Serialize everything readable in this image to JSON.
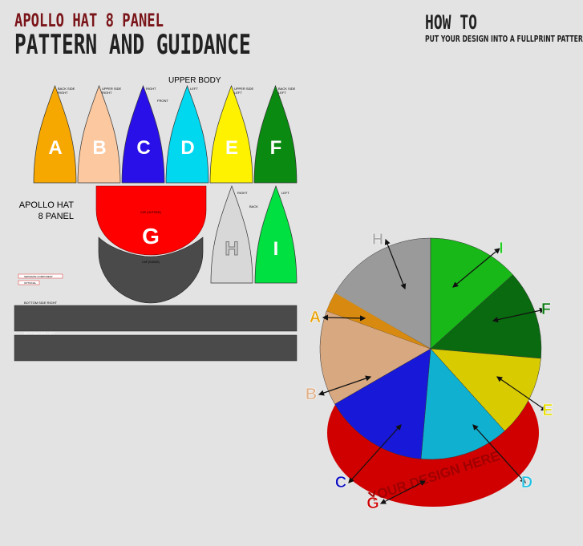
{
  "header": {
    "brand": "APOLLO HAT 8 PANEL",
    "title": "PATTERN AND GUIDANCE",
    "howto_title": "HOW TO",
    "howto_sub": "PUT YOUR DESIGN INTO A FULLPRINT PATTERN"
  },
  "pattern": {
    "upper_body_label": "UPPER BODY",
    "front_label": "FRONT",
    "side_label": "APOLLO HAT",
    "side_label2": "8 PANEL",
    "panels": [
      {
        "letter": "A",
        "color": "#f7a800",
        "note": "BACK SIDE",
        "note2": "RIGHT"
      },
      {
        "letter": "B",
        "color": "#fbc8a0",
        "note": "UPPER SIDE",
        "note2": "RIGHT"
      },
      {
        "letter": "C",
        "color": "#2a10e8",
        "note": "RIGHT",
        "note2": ""
      },
      {
        "letter": "D",
        "color": "#00d8f0",
        "note": "LEFT",
        "note2": ""
      },
      {
        "letter": "E",
        "color": "#fff200",
        "note": "UPPER SIDE",
        "note2": "LEFT"
      },
      {
        "letter": "F",
        "color": "#0a8a10",
        "note": "BACK SIDE",
        "note2": "LEFT"
      }
    ],
    "visor": {
      "letter": "G",
      "color": "#ff0000",
      "outer_label": "CAP (OUTSIDE)",
      "inner_label": "CAP (INSIDE)",
      "inner_color": "#4a4a4a"
    },
    "back": [
      {
        "letter": "H",
        "color": "#d8d8d8",
        "note": "RIGHT"
      },
      {
        "letter": "I",
        "color": "#00e040",
        "note": "LEFT"
      }
    ],
    "back_label": "BACK",
    "bands": [
      {
        "label": "BOTTOM SIDE RIGHT"
      },
      {
        "label": "BOTTOM SIDE LEFT"
      }
    ],
    "legend": [
      "SEPARATE COMPONENT",
      "OPTIONAL"
    ]
  },
  "hat": {
    "brim_text": "YOUR DESIGN HERE",
    "labels": [
      {
        "letter": "H",
        "color": "#aaaaaa"
      },
      {
        "letter": "I",
        "color": "#22cc22"
      },
      {
        "letter": "F",
        "color": "#0a7a10"
      },
      {
        "letter": "E",
        "color": "#e8e000"
      },
      {
        "letter": "D",
        "color": "#20c0e0"
      },
      {
        "letter": "G",
        "color": "#cc0000"
      },
      {
        "letter": "C",
        "color": "#1010c0"
      },
      {
        "letter": "B",
        "color": "#e0b088"
      },
      {
        "letter": "A",
        "color": "#e8a000"
      }
    ]
  }
}
